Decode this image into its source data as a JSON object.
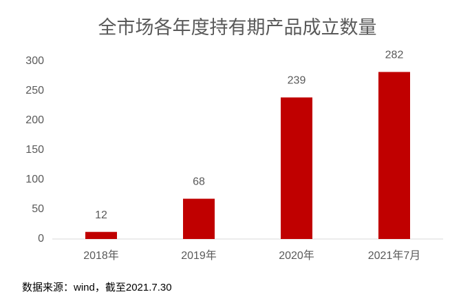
{
  "chart_data": {
    "type": "bar",
    "title": "全市场各年度持有期产品成立数量",
    "categories": [
      "2018年",
      "2019年",
      "2020年",
      "2021年7月"
    ],
    "values": [
      12,
      68,
      239,
      282
    ],
    "color": "#c00000",
    "ylim": [
      0,
      300
    ],
    "yticks": [
      0,
      50,
      100,
      150,
      200,
      250,
      300
    ],
    "grid": false,
    "note": "数据来源：wind，截至2021.7.30"
  }
}
